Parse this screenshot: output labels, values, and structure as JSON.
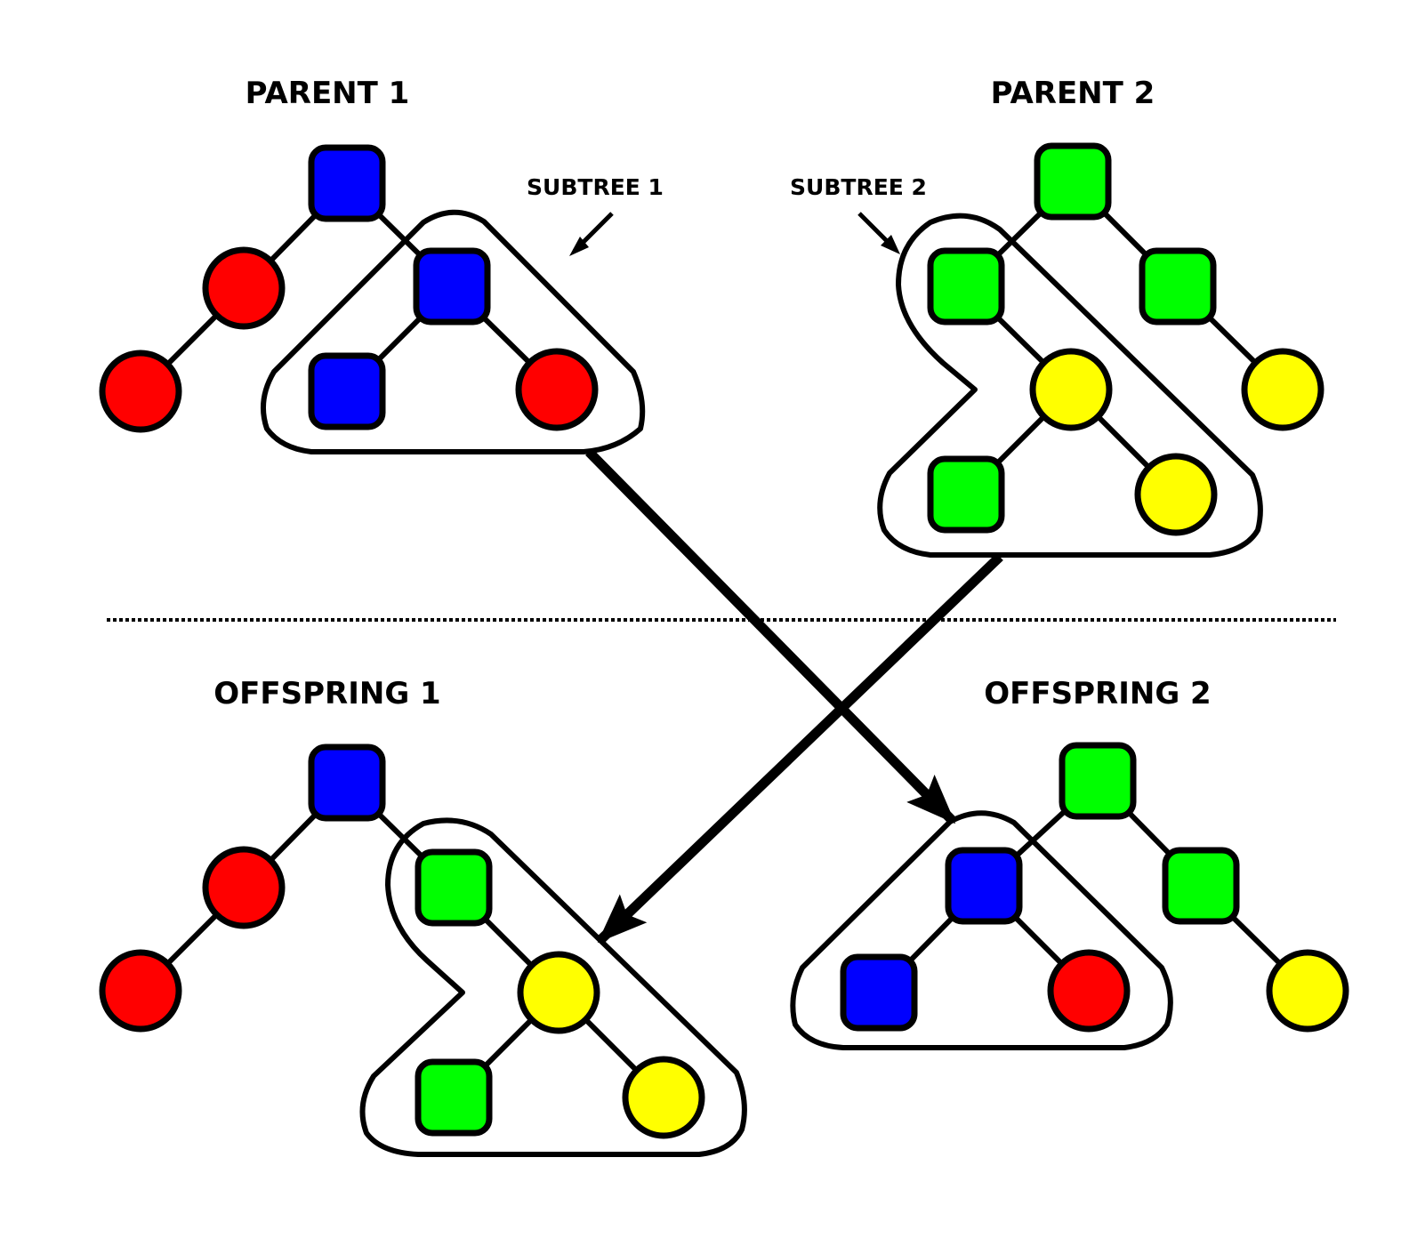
{
  "labels": {
    "parent1": "PARENT 1",
    "parent2": "PARENT 2",
    "subtree1": "SUBTREE 1",
    "subtree2": "SUBTREE 2",
    "offspring1": "OFFSPRING 1",
    "offspring2": "OFFSPRING 2"
  },
  "colors": {
    "blue": "#0000ff",
    "red": "#ff0000",
    "green": "#00ff00",
    "yellow": "#ffff00",
    "outline": "#000000"
  },
  "trees": {
    "parent1": [
      {
        "id": "p1-root",
        "shape": "square",
        "color": "blue"
      },
      {
        "id": "p1-left",
        "shape": "circle",
        "color": "red"
      },
      {
        "id": "p1-left-left",
        "shape": "circle",
        "color": "red"
      },
      {
        "id": "p1-sub-root",
        "shape": "square",
        "color": "blue"
      },
      {
        "id": "p1-sub-left",
        "shape": "square",
        "color": "blue"
      },
      {
        "id": "p1-sub-right",
        "shape": "circle",
        "color": "red"
      }
    ],
    "parent2": [
      {
        "id": "p2-root",
        "shape": "square",
        "color": "green"
      },
      {
        "id": "p2-sub-root",
        "shape": "square",
        "color": "green"
      },
      {
        "id": "p2-right",
        "shape": "square",
        "color": "green"
      },
      {
        "id": "p2-sub-mid",
        "shape": "circle",
        "color": "yellow"
      },
      {
        "id": "p2-right-right",
        "shape": "circle",
        "color": "yellow"
      },
      {
        "id": "p2-sub-left",
        "shape": "square",
        "color": "green"
      },
      {
        "id": "p2-sub-right",
        "shape": "circle",
        "color": "yellow"
      }
    ],
    "offspring1": [
      {
        "id": "o1-root",
        "shape": "square",
        "color": "blue"
      },
      {
        "id": "o1-left",
        "shape": "circle",
        "color": "red"
      },
      {
        "id": "o1-left-left",
        "shape": "circle",
        "color": "red"
      },
      {
        "id": "o1-sub-root",
        "shape": "square",
        "color": "green"
      },
      {
        "id": "o1-sub-mid",
        "shape": "circle",
        "color": "yellow"
      },
      {
        "id": "o1-sub-left",
        "shape": "square",
        "color": "green"
      },
      {
        "id": "o1-sub-right",
        "shape": "circle",
        "color": "yellow"
      }
    ],
    "offspring2": [
      {
        "id": "o2-root",
        "shape": "square",
        "color": "green"
      },
      {
        "id": "o2-sub-root",
        "shape": "square",
        "color": "blue"
      },
      {
        "id": "o2-right",
        "shape": "square",
        "color": "green"
      },
      {
        "id": "o2-sub-left",
        "shape": "square",
        "color": "blue"
      },
      {
        "id": "o2-sub-right",
        "shape": "circle",
        "color": "red"
      },
      {
        "id": "o2-right-right",
        "shape": "circle",
        "color": "yellow"
      }
    ]
  }
}
